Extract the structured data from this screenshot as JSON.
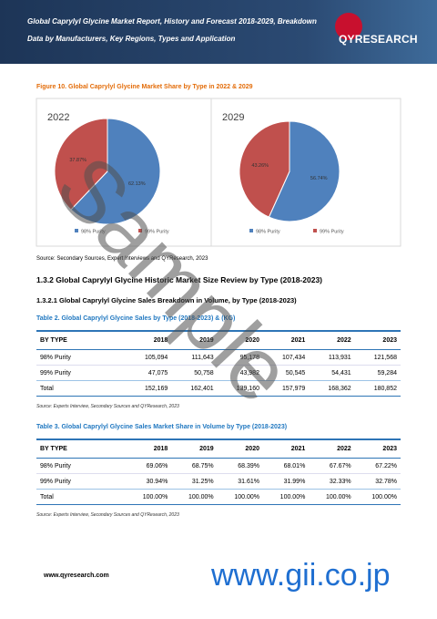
{
  "header": {
    "title": "Global Caprylyl Glycine Market Report, History and Forecast 2018-2029, Breakdown Data by Manufacturers, Key Regions, Types and Application",
    "logo": "QYRESEARCH"
  },
  "figure": {
    "caption": "Figure 10.   Global Caprylyl Glycine Market Share by Type in 2022 & 2029",
    "source": "Source: Secondary Sources, Expert Interviews and QYResearch, 2023"
  },
  "chart_data": [
    {
      "type": "pie",
      "title": "2022",
      "categories": [
        "98% Purity",
        "99% Purity"
      ],
      "values": [
        62.13,
        37.87
      ],
      "value_labels": [
        "62.13%",
        "37.87%"
      ],
      "colors": [
        "#4f81bd",
        "#c0504d"
      ]
    },
    {
      "type": "pie",
      "title": "2029",
      "categories": [
        "98% Purity",
        "99% Purity"
      ],
      "values": [
        56.74,
        43.26
      ],
      "value_labels": [
        "56.74%",
        "43.26%"
      ],
      "colors": [
        "#4f81bd",
        "#c0504d"
      ]
    }
  ],
  "section": {
    "heading": "1.3.2   Global Caprylyl Glycine Historic Market Size Review by Type (2018-2023)",
    "subheading": "1.3.2.1   Global Caprylyl Glycine Sales Breakdown in Volume, by Type (2018-2023)"
  },
  "tables": [
    {
      "caption": "Table 2.   Global Caprylyl Glycine Sales by Type (2018-2023) & (KG)",
      "columns": [
        "BY TYPE",
        "2018",
        "2019",
        "2020",
        "2021",
        "2022",
        "2023"
      ],
      "rows": [
        [
          "98% Purity",
          "105,094",
          "111,643",
          "95,178",
          "107,434",
          "113,931",
          "121,568"
        ],
        [
          "99% Purity",
          "47,075",
          "50,758",
          "43,982",
          "50,545",
          "54,431",
          "59,284"
        ],
        [
          "Total",
          "152,169",
          "162,401",
          "139,160",
          "157,979",
          "168,362",
          "180,852"
        ]
      ],
      "source": "Source: Experts Interview, Secondary Sources and QYResearch, 2023"
    },
    {
      "caption": "Table 3.   Global Caprylyl Glycine Sales Market Share in Volume by Type (2018-2023)",
      "columns": [
        "BY TYPE",
        "2018",
        "2019",
        "2020",
        "2021",
        "2022",
        "2023"
      ],
      "rows": [
        [
          "98% Purity",
          "69.06%",
          "68.75%",
          "68.39%",
          "68.01%",
          "67.67%",
          "67.22%"
        ],
        [
          "99% Purity",
          "30.94%",
          "31.25%",
          "31.61%",
          "31.99%",
          "32.33%",
          "32.78%"
        ],
        [
          "Total",
          "100.00%",
          "100.00%",
          "100.00%",
          "100.00%",
          "100.00%",
          "100.00%"
        ]
      ],
      "source": "Source: Experts Interview, Secondary Sources and QYResearch, 2023"
    }
  ],
  "footer": {
    "url": "www.qyresearch.com"
  },
  "watermarks": [
    "Sample",
    "www.gii.co.jp"
  ]
}
